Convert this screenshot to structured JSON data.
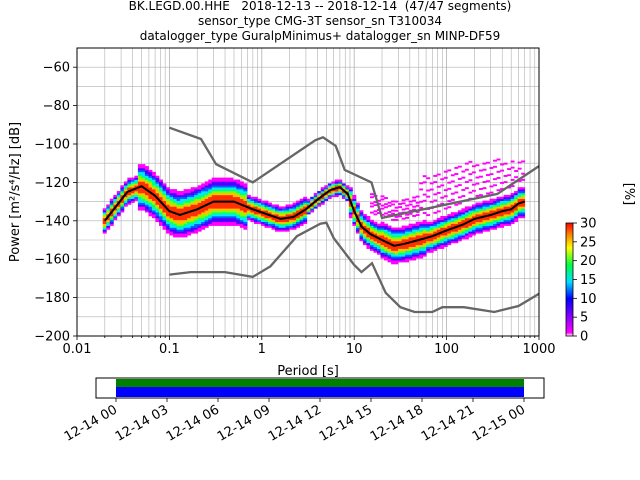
{
  "title_lines": [
    "BK.LEGD.00.HHE   2018-12-13 -- 2018-12-14  (47/47 segments)",
    "sensor_type CMG-3T sensor_sn T310034",
    "datalogger_type GuralpMinimus+ datalogger_sn MINP-DF59"
  ],
  "chart_data": {
    "type": "heatmap",
    "xlabel": "Period [s]",
    "ylabel": "Power [m²/s⁴/Hz] [dB]",
    "xscale": "log",
    "xlim": [
      0.01,
      1000
    ],
    "ylim": [
      -200,
      -50
    ],
    "x_ticks": [
      {
        "v": 0.01,
        "label": "0.01"
      },
      {
        "v": 0.1,
        "label": "0.1"
      },
      {
        "v": 1,
        "label": "1"
      },
      {
        "v": 10,
        "label": "10"
      },
      {
        "v": 100,
        "label": "100"
      },
      {
        "v": 1000,
        "label": "1000"
      }
    ],
    "y_ticks": [
      {
        "v": -60,
        "label": "−60"
      },
      {
        "v": -80,
        "label": "−80"
      },
      {
        "v": -100,
        "label": "−100"
      },
      {
        "v": -120,
        "label": "−120"
      },
      {
        "v": -140,
        "label": "−140"
      },
      {
        "v": -160,
        "label": "−160"
      },
      {
        "v": -180,
        "label": "−180"
      },
      {
        "v": -200,
        "label": "−200"
      }
    ],
    "grid": true,
    "noise_models": [
      {
        "points": [
          [
            0.1,
            -91.5
          ],
          [
            0.22,
            -97.4
          ],
          [
            0.32,
            -110.5
          ],
          [
            0.8,
            -120
          ],
          [
            3.8,
            -98
          ],
          [
            4.6,
            -96.5
          ],
          [
            6.3,
            -101
          ],
          [
            7.9,
            -113.5
          ],
          [
            15.4,
            -120
          ],
          [
            20,
            -138.5
          ],
          [
            354.8,
            -126
          ],
          [
            1000,
            -111.5
          ]
        ]
      },
      {
        "points": [
          [
            0.1,
            -168
          ],
          [
            0.17,
            -166.7
          ],
          [
            0.4,
            -166.7
          ],
          [
            0.8,
            -169.2
          ],
          [
            1.24,
            -163.7
          ],
          [
            2.4,
            -148
          ],
          [
            4.3,
            -141.5
          ],
          [
            5,
            -141
          ],
          [
            6,
            -149
          ],
          [
            10,
            -163
          ],
          [
            12,
            -166.7
          ],
          [
            15.6,
            -162.1
          ],
          [
            21.9,
            -177.5
          ],
          [
            31.6,
            -185
          ],
          [
            45,
            -187.5
          ],
          [
            70,
            -187.5
          ],
          [
            90,
            -185
          ],
          [
            154,
            -185
          ],
          [
            328,
            -187.5
          ],
          [
            600,
            -184.4
          ],
          [
            1000,
            -178
          ]
        ]
      }
    ],
    "mode_curve": {
      "points": [
        [
          0.02,
          -140
        ],
        [
          0.025,
          -134
        ],
        [
          0.035,
          -125
        ],
        [
          0.05,
          -122
        ],
        [
          0.07,
          -127
        ],
        [
          0.1,
          -135
        ],
        [
          0.13,
          -137
        ],
        [
          0.2,
          -134
        ],
        [
          0.3,
          -130
        ],
        [
          0.5,
          -130
        ],
        [
          0.8,
          -134
        ],
        [
          1.2,
          -137
        ],
        [
          1.6,
          -139
        ],
        [
          2.2,
          -138
        ],
        [
          3,
          -134
        ],
        [
          4,
          -129
        ],
        [
          5.5,
          -124
        ],
        [
          7,
          -122.5
        ],
        [
          8.5,
          -126
        ],
        [
          10,
          -135
        ],
        [
          12,
          -143
        ],
        [
          15,
          -147
        ],
        [
          20,
          -150
        ],
        [
          27,
          -153
        ],
        [
          35,
          -152
        ],
        [
          50,
          -150
        ],
        [
          70,
          -148
        ],
        [
          100,
          -145
        ],
        [
          150,
          -142
        ],
        [
          200,
          -139
        ],
        [
          300,
          -137
        ],
        [
          400,
          -135
        ],
        [
          500,
          -134
        ],
        [
          600,
          -131
        ],
        [
          700,
          -130
        ]
      ]
    },
    "colorbar": {
      "label": "[%]",
      "vmin": 0,
      "vmax": 30,
      "ticks": [
        0,
        5,
        10,
        15,
        20,
        25,
        30
      ]
    }
  },
  "availability": {
    "tick_labels": [
      "12-14 00",
      "12-14 03",
      "12-14 06",
      "12-14 09",
      "12-14 12",
      "12-14 15",
      "12-14 18",
      "12-14 21",
      "12-15 00"
    ],
    "colors": {
      "top": "#008000",
      "bottom": "#0000ff"
    }
  }
}
